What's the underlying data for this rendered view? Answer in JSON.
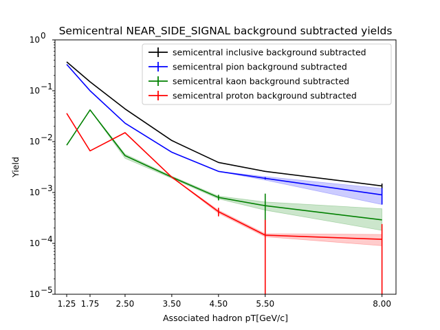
{
  "chart_data": {
    "type": "line",
    "title": "Semicentral NEAR_SIDE_SIGNAL background subtracted yields",
    "xlabel": "Associated hadron pT[GeV/c]",
    "ylabel": "Yield",
    "x_ticks": [
      1.25,
      1.75,
      2.5,
      3.5,
      4.5,
      5.5,
      8.0
    ],
    "x_tick_labels": [
      "1.25",
      "1.75",
      "2.50",
      "3.50",
      "4.50",
      "5.50",
      "8.00"
    ],
    "xlim": [
      1.0,
      8.3
    ],
    "y_scale": "log",
    "ylim": [
      1e-05,
      1
    ],
    "legend_position": "upper right",
    "series": [
      {
        "name": "semicentral inclusive background subtracted",
        "color": "#000000",
        "band_color": "#808080",
        "x": [
          1.25,
          1.75,
          2.5,
          3.5,
          4.5,
          5.5,
          8.0
        ],
        "y": [
          0.37,
          0.15,
          0.044,
          0.0105,
          0.0039,
          0.0026,
          0.00135
        ],
        "yerr": [
          0,
          0,
          0,
          0,
          0,
          0,
          0.00015
        ],
        "band_lo": [
          0.37,
          0.15,
          0.044,
          0.0105,
          0.0039,
          0.0026,
          0.00125
        ],
        "band_hi": [
          0.37,
          0.15,
          0.044,
          0.0105,
          0.0039,
          0.0026,
          0.00145
        ]
      },
      {
        "name": "semicentral pion background subtracted",
        "color": "#0000ff",
        "band_color": "#0000ff",
        "x": [
          1.25,
          1.75,
          2.5,
          3.5,
          4.5,
          5.5,
          8.0
        ],
        "y": [
          0.33,
          0.1,
          0.023,
          0.0062,
          0.0026,
          0.0019,
          0.0009
        ],
        "yerr": [
          0,
          0,
          0,
          0,
          0,
          0.0001,
          0.00032
        ],
        "band_lo": [
          0.33,
          0.1,
          0.023,
          0.0062,
          0.0026,
          0.00175,
          0.00058
        ],
        "band_hi": [
          0.33,
          0.1,
          0.023,
          0.0062,
          0.0026,
          0.00205,
          0.0012
        ]
      },
      {
        "name": "semicentral kaon background subtracted",
        "color": "#008000",
        "band_color": "#008000",
        "x": [
          1.25,
          1.75,
          2.5,
          3.5,
          4.5,
          5.5,
          8.0
        ],
        "y": [
          0.0085,
          0.042,
          0.0053,
          0.002,
          0.0008,
          0.00055,
          0.00029
        ],
        "yerr": [
          0,
          0,
          0,
          0,
          0.0001,
          0.0004,
          0
        ],
        "band_lo": [
          0.0085,
          0.042,
          0.0047,
          0.0019,
          0.00075,
          0.00045,
          0.00018
        ],
        "band_hi": [
          0.0085,
          0.042,
          0.0057,
          0.0021,
          0.00085,
          0.00065,
          0.00048
        ]
      },
      {
        "name": "semicentral proton background subtracted",
        "color": "#ff0000",
        "band_color": "#ff0000",
        "x": [
          1.25,
          1.75,
          2.5,
          3.5,
          4.5,
          5.5,
          8.0
        ],
        "y": [
          0.036,
          0.0066,
          0.015,
          0.002,
          0.00042,
          0.000145,
          0.00012
        ],
        "yerr": [
          0,
          0,
          0,
          0,
          8e-05,
          0.000145,
          0.00012
        ],
        "band_lo": [
          0.036,
          0.0066,
          0.015,
          0.002,
          0.00039,
          0.000135,
          9e-05
        ],
        "band_hi": [
          0.036,
          0.0066,
          0.015,
          0.002,
          0.00045,
          0.000155,
          0.00015
        ]
      }
    ]
  }
}
